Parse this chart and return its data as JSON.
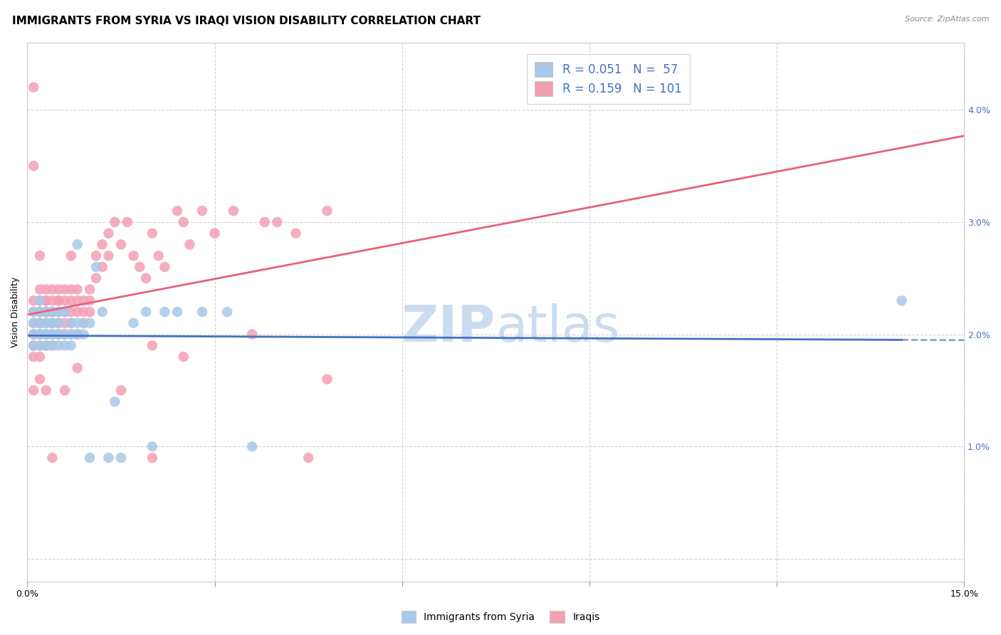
{
  "title": "IMMIGRANTS FROM SYRIA VS IRAQI VISION DISABILITY CORRELATION CHART",
  "source": "Source: ZipAtlas.com",
  "ylabel": "Vision Disability",
  "xlim": [
    0.0,
    0.15
  ],
  "ylim": [
    -0.002,
    0.046
  ],
  "series1_color": "#a8c8e8",
  "series2_color": "#f4a0b4",
  "line1_color": "#4472c4",
  "line2_color": "#e8607a",
  "line1_dash_color": "#90b0d8",
  "background_color": "#ffffff",
  "grid_color": "#cccccc",
  "title_fontsize": 11,
  "axis_label_fontsize": 9,
  "tick_fontsize": 9,
  "watermark_color": "#ccdcf0",
  "R1": 0.051,
  "N1": 57,
  "R2": 0.159,
  "N2": 101,
  "syria_x": [
    0.001,
    0.001,
    0.001,
    0.001,
    0.002,
    0.002,
    0.002,
    0.002,
    0.002,
    0.002,
    0.002,
    0.003,
    0.003,
    0.003,
    0.003,
    0.003,
    0.003,
    0.003,
    0.003,
    0.004,
    0.004,
    0.004,
    0.004,
    0.004,
    0.004,
    0.005,
    0.005,
    0.005,
    0.005,
    0.005,
    0.006,
    0.006,
    0.006,
    0.007,
    0.007,
    0.007,
    0.008,
    0.008,
    0.008,
    0.009,
    0.009,
    0.01,
    0.01,
    0.011,
    0.012,
    0.013,
    0.014,
    0.015,
    0.017,
    0.019,
    0.02,
    0.022,
    0.024,
    0.028,
    0.032,
    0.036,
    0.14
  ],
  "syria_y": [
    0.021,
    0.02,
    0.022,
    0.019,
    0.02,
    0.021,
    0.022,
    0.023,
    0.019,
    0.021,
    0.02,
    0.019,
    0.02,
    0.021,
    0.022,
    0.019,
    0.021,
    0.02,
    0.022,
    0.02,
    0.021,
    0.022,
    0.019,
    0.02,
    0.021,
    0.021,
    0.02,
    0.019,
    0.022,
    0.02,
    0.022,
    0.02,
    0.019,
    0.021,
    0.02,
    0.019,
    0.021,
    0.02,
    0.028,
    0.021,
    0.02,
    0.021,
    0.009,
    0.026,
    0.022,
    0.009,
    0.014,
    0.009,
    0.021,
    0.022,
    0.01,
    0.022,
    0.022,
    0.022,
    0.022,
    0.01,
    0.023
  ],
  "iraq_x": [
    0.001,
    0.001,
    0.001,
    0.001,
    0.001,
    0.001,
    0.001,
    0.001,
    0.002,
    0.002,
    0.002,
    0.002,
    0.002,
    0.002,
    0.002,
    0.002,
    0.002,
    0.002,
    0.002,
    0.003,
    0.003,
    0.003,
    0.003,
    0.003,
    0.003,
    0.003,
    0.003,
    0.003,
    0.004,
    0.004,
    0.004,
    0.004,
    0.004,
    0.004,
    0.004,
    0.005,
    0.005,
    0.005,
    0.005,
    0.005,
    0.005,
    0.006,
    0.006,
    0.006,
    0.006,
    0.006,
    0.007,
    0.007,
    0.007,
    0.007,
    0.007,
    0.007,
    0.008,
    0.008,
    0.008,
    0.008,
    0.009,
    0.009,
    0.009,
    0.01,
    0.01,
    0.01,
    0.011,
    0.011,
    0.012,
    0.012,
    0.013,
    0.013,
    0.014,
    0.015,
    0.016,
    0.017,
    0.018,
    0.019,
    0.02,
    0.021,
    0.022,
    0.024,
    0.025,
    0.026,
    0.028,
    0.03,
    0.033,
    0.038,
    0.04,
    0.043,
    0.048,
    0.001,
    0.002,
    0.004,
    0.001,
    0.003,
    0.006,
    0.008,
    0.015,
    0.02,
    0.025,
    0.036,
    0.045,
    0.02,
    0.048
  ],
  "iraq_y": [
    0.042,
    0.035,
    0.02,
    0.021,
    0.022,
    0.023,
    0.019,
    0.018,
    0.027,
    0.021,
    0.022,
    0.023,
    0.024,
    0.02,
    0.019,
    0.021,
    0.018,
    0.02,
    0.022,
    0.022,
    0.023,
    0.024,
    0.021,
    0.022,
    0.02,
    0.019,
    0.023,
    0.022,
    0.023,
    0.022,
    0.024,
    0.02,
    0.021,
    0.019,
    0.022,
    0.023,
    0.022,
    0.024,
    0.02,
    0.023,
    0.021,
    0.024,
    0.022,
    0.023,
    0.02,
    0.021,
    0.023,
    0.022,
    0.024,
    0.021,
    0.02,
    0.027,
    0.023,
    0.022,
    0.024,
    0.02,
    0.023,
    0.022,
    0.021,
    0.024,
    0.022,
    0.023,
    0.025,
    0.027,
    0.026,
    0.028,
    0.029,
    0.027,
    0.03,
    0.028,
    0.03,
    0.027,
    0.026,
    0.025,
    0.029,
    0.027,
    0.026,
    0.031,
    0.03,
    0.028,
    0.031,
    0.029,
    0.031,
    0.03,
    0.03,
    0.029,
    0.031,
    0.015,
    0.016,
    0.009,
    0.02,
    0.015,
    0.015,
    0.017,
    0.015,
    0.009,
    0.018,
    0.02,
    0.009,
    0.019,
    0.016
  ]
}
